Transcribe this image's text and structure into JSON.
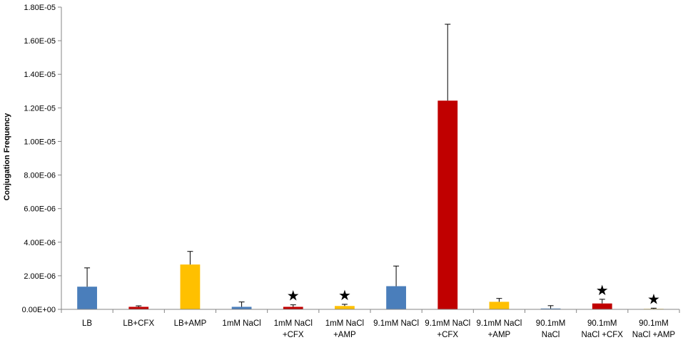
{
  "chart_data": {
    "type": "bar",
    "ylabel": "Conjugation Frequency",
    "xlabel": "",
    "ylim": [
      0,
      1.8e-05
    ],
    "ytick_values": [
      0,
      2e-06,
      4e-06,
      6e-06,
      8e-06,
      1e-05,
      1.2e-05,
      1.4e-05,
      1.6e-05,
      1.8e-05
    ],
    "ytick_labels": [
      "0.00E+00",
      "2.00E-06",
      "4.00E-06",
      "6.00E-06",
      "8.00E-06",
      "1.00E-05",
      "1.20E-05",
      "1.40E-05",
      "1.60E-05",
      "1.80E-05"
    ],
    "grid": false,
    "legend": "none",
    "categories": [
      [
        "LB"
      ],
      [
        "LB+CFX"
      ],
      [
        "LB+AMP"
      ],
      [
        "1mM NaCl"
      ],
      [
        "1mM NaCl",
        "+CFX"
      ],
      [
        "1mM NaCl",
        "+AMP"
      ],
      [
        "9.1mM NaCl"
      ],
      [
        "9.1mM NaCl",
        "+CFX"
      ],
      [
        "9.1mM NaCl",
        "+AMP"
      ],
      [
        "90.1mM",
        "NaCl"
      ],
      [
        "90.1mM",
        "NaCl +CFX"
      ],
      [
        "90.1mM",
        "NaCl +AMP"
      ]
    ],
    "values": [
      1.35e-06,
      1.5e-07,
      2.67e-06,
      1.5e-07,
      1.5e-07,
      2e-07,
      1.38e-06,
      1.243e-05,
      4.5e-07,
      5e-08,
      3.5e-07,
      3e-08
    ],
    "errors": [
      1.12e-06,
      6e-08,
      7.8e-07,
      2.9e-07,
      1.2e-07,
      1e-07,
      1.2e-06,
      4.55e-06,
      2e-07,
      1.7e-07,
      2.5e-07,
      4e-08
    ],
    "colors": [
      "#4a7ebb",
      "#c00000",
      "#ffc000",
      "#4a7ebb",
      "#c00000",
      "#ffc000",
      "#4a7ebb",
      "#c00000",
      "#ffc000",
      "#4a7ebb",
      "#c00000",
      "#ffc000"
    ],
    "significance_markers": [
      false,
      false,
      false,
      false,
      true,
      true,
      false,
      false,
      false,
      false,
      true,
      true
    ],
    "marker_symbol": "★"
  }
}
